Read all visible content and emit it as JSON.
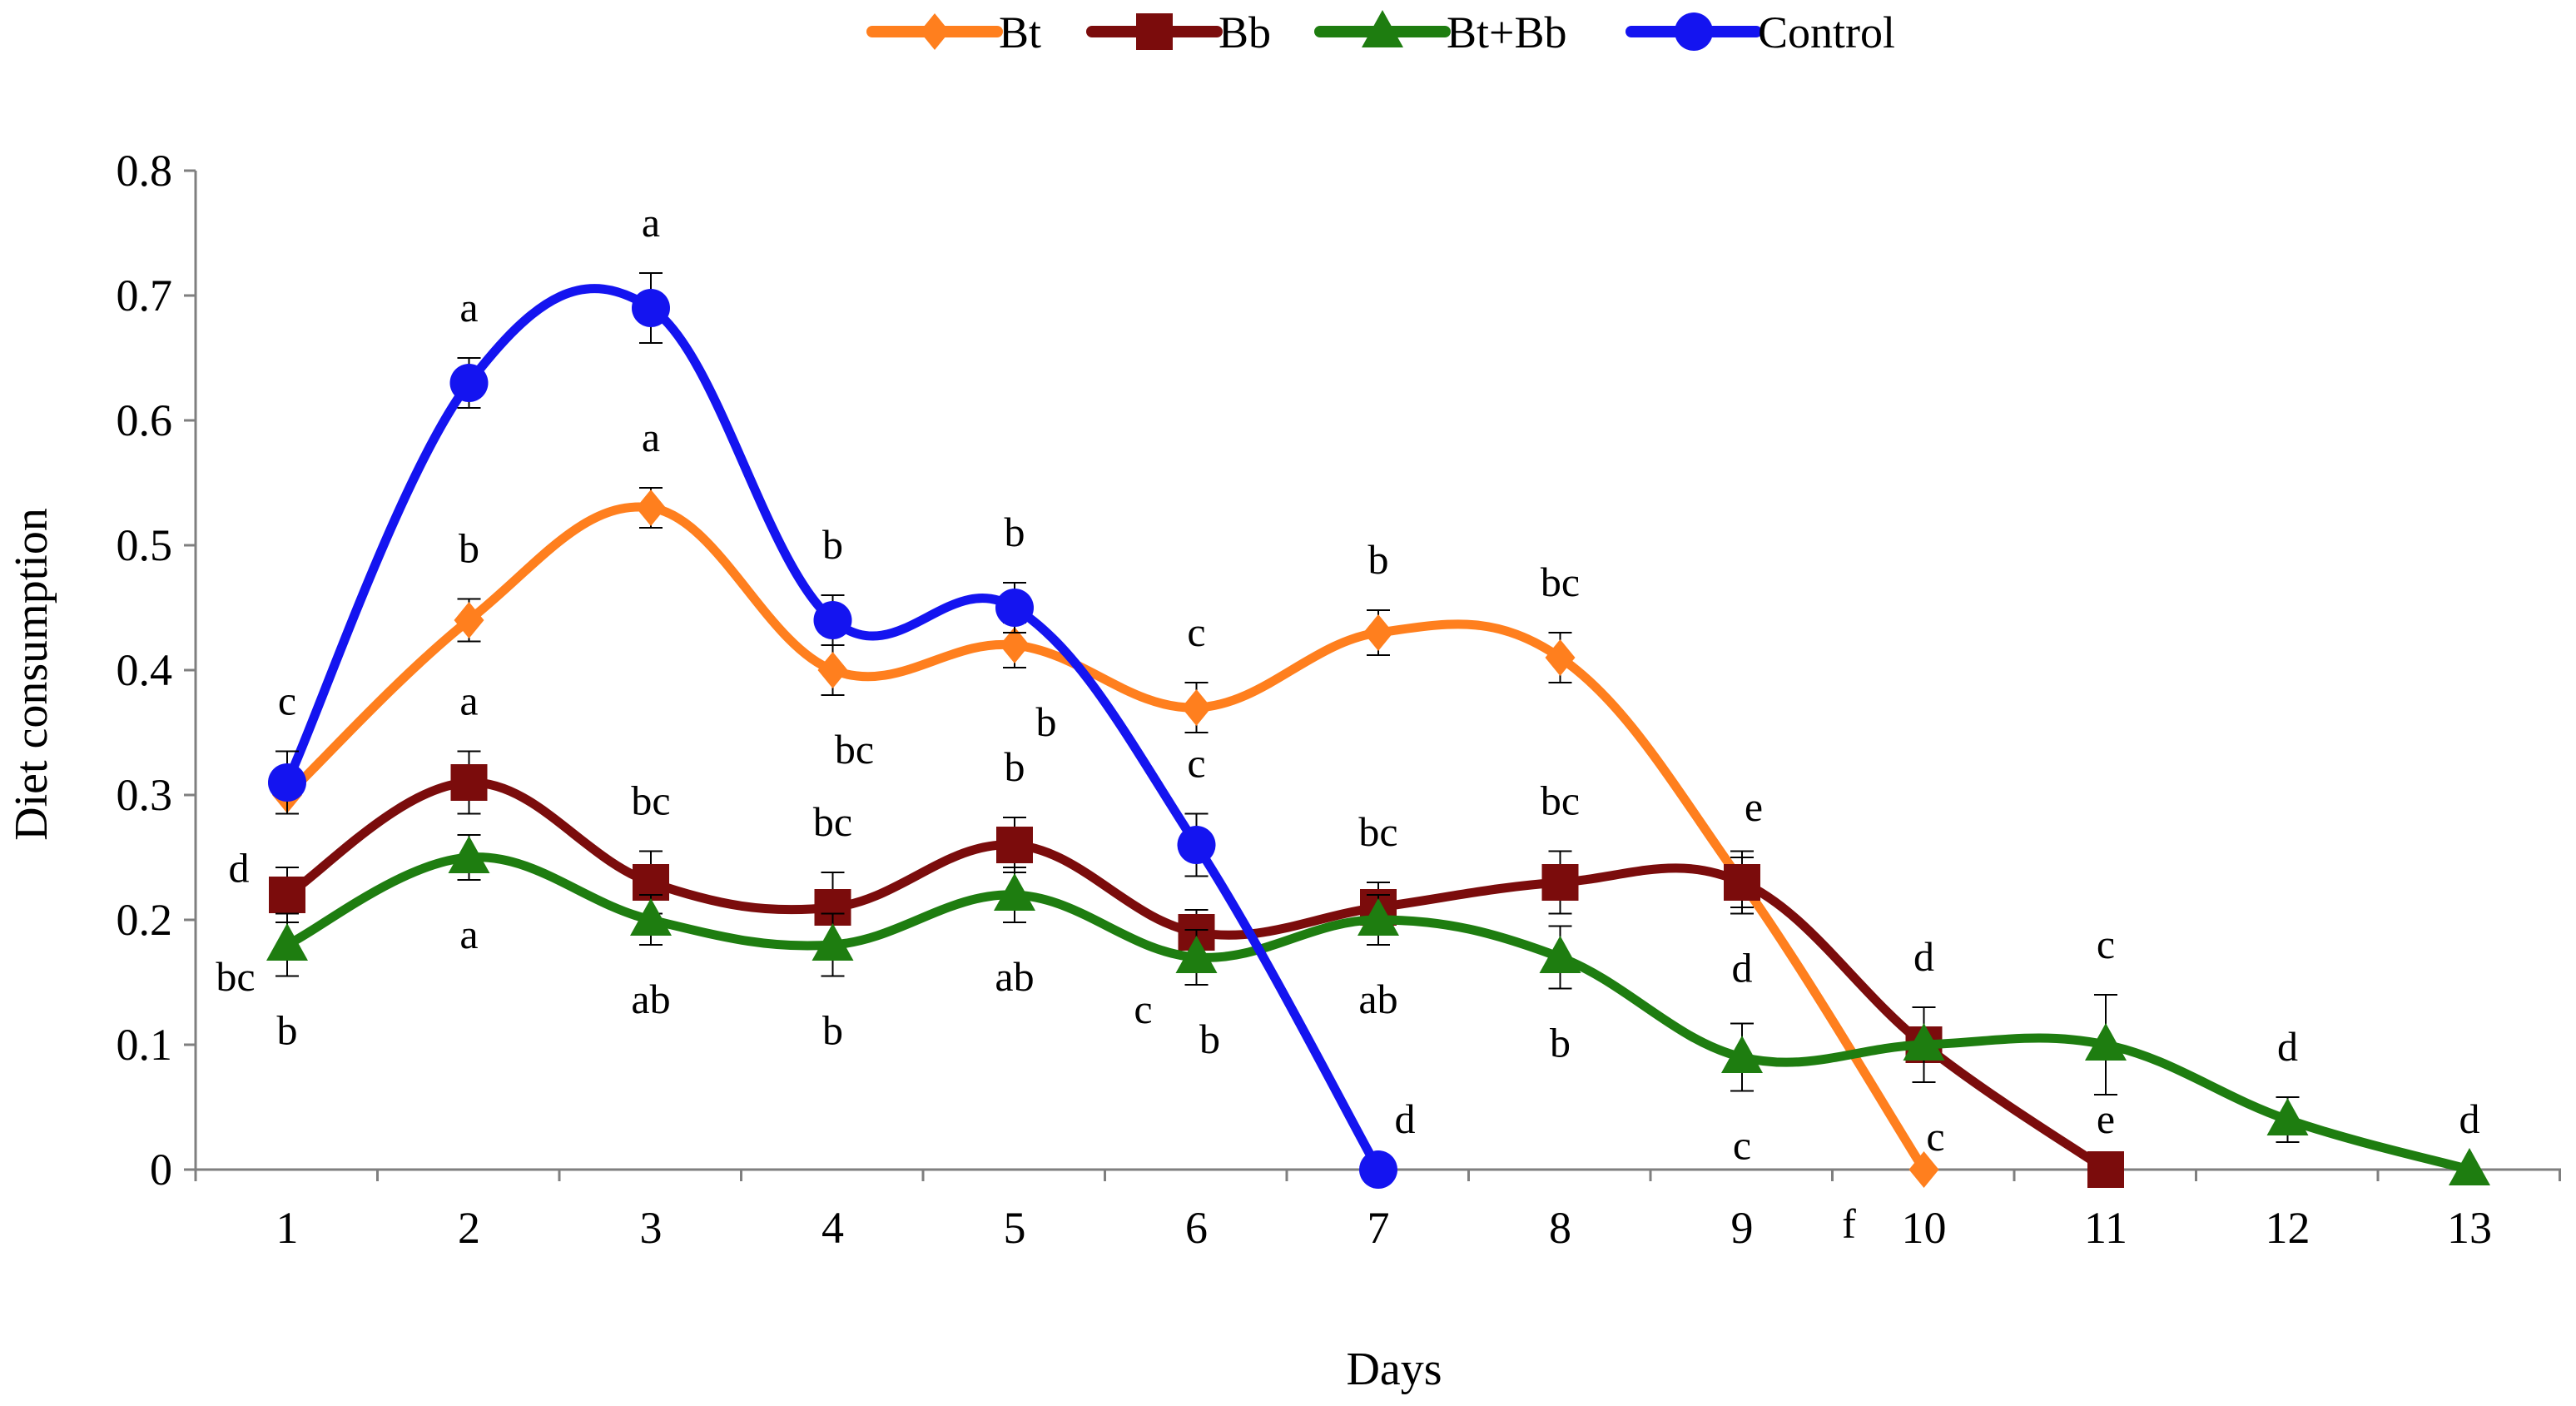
{
  "chart_data": {
    "type": "line",
    "title": "",
    "xlabel": "Days",
    "ylabel": "Diet consumption",
    "x": [
      1,
      2,
      3,
      4,
      5,
      6,
      7,
      8,
      9,
      10,
      11,
      12,
      13
    ],
    "xticks": [
      "1",
      "2",
      "3",
      "4",
      "5",
      "6",
      "7",
      "8",
      "9",
      "10",
      "11",
      "12",
      "13"
    ],
    "ylim": [
      0,
      0.8
    ],
    "yticks": [
      "0",
      "0.1",
      "0.2",
      "0.3",
      "0.4",
      "0.5",
      "0.6",
      "0.7",
      "0.8"
    ],
    "grid": false,
    "legend_position": "top-center",
    "series": [
      {
        "name": "Bt",
        "color": "#ff7f1e",
        "marker": "diamond",
        "x": [
          1,
          2,
          3,
          4,
          5,
          6,
          7,
          8,
          9,
          10
        ],
        "values": [
          0.3,
          0.44,
          0.53,
          0.4,
          0.42,
          0.37,
          0.43,
          0.41,
          0.23,
          0.0
        ],
        "errors": [
          0.015,
          0.017,
          0.016,
          0.02,
          0.018,
          0.02,
          0.018,
          0.02,
          0.02,
          0
        ],
        "letters": [
          "d",
          "b",
          "a",
          "bc",
          "b",
          "c",
          "b",
          "bc",
          "e",
          "f"
        ]
      },
      {
        "name": "Bb",
        "color": "#7b0c0c",
        "marker": "square",
        "x": [
          1,
          2,
          3,
          4,
          5,
          6,
          7,
          8,
          9,
          10,
          11
        ],
        "values": [
          0.22,
          0.31,
          0.23,
          0.21,
          0.26,
          0.19,
          0.21,
          0.23,
          0.23,
          0.1,
          0.0
        ],
        "errors": [
          0.022,
          0.025,
          0.025,
          0.028,
          0.022,
          0.018,
          0.02,
          0.025,
          0.025,
          0.03,
          0
        ],
        "letters": [
          "bc",
          "a",
          "bc",
          "bc",
          "b",
          "c",
          "bc",
          "bc",
          "d",
          "d",
          "e"
        ]
      },
      {
        "name": "Bt+Bb",
        "color": "#1e7d10",
        "marker": "triangle",
        "x": [
          1,
          2,
          3,
          4,
          5,
          6,
          7,
          8,
          9,
          10,
          11,
          12,
          13
        ],
        "values": [
          0.18,
          0.25,
          0.2,
          0.18,
          0.22,
          0.17,
          0.2,
          0.17,
          0.09,
          0.1,
          0.1,
          0.04,
          0.0
        ],
        "errors": [
          0.025,
          0.018,
          0.02,
          0.025,
          0.022,
          0.022,
          0.02,
          0.025,
          0.027,
          0.03,
          0.04,
          0.018,
          0
        ],
        "letters": [
          "b",
          "a",
          "ab",
          "b",
          "ab",
          "b",
          "ab",
          "b",
          "c",
          "c",
          "c",
          "d",
          "d"
        ]
      },
      {
        "name": "Control",
        "color": "#1414f0",
        "marker": "circle",
        "x": [
          1,
          2,
          3,
          4,
          5,
          6,
          7
        ],
        "values": [
          0.31,
          0.63,
          0.69,
          0.44,
          0.45,
          0.26,
          0.0
        ],
        "errors": [
          0.025,
          0.02,
          0.028,
          0.02,
          0.02,
          0.025,
          0
        ],
        "letters": [
          "c",
          "a",
          "a",
          "b",
          "b",
          "c",
          "d"
        ]
      }
    ]
  }
}
